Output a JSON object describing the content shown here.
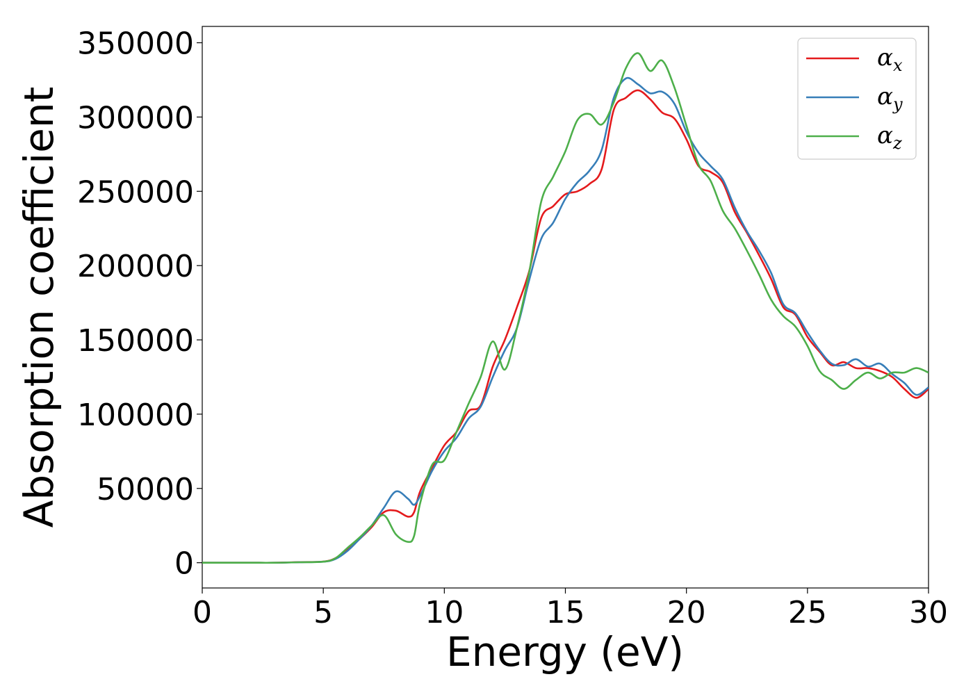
{
  "chart_data": {
    "type": "line",
    "xlabel": "Energy (eV)",
    "ylabel": "Absorption coefficient",
    "xlim": [
      0,
      30
    ],
    "ylim": [
      -17000,
      361000
    ],
    "xticks": [
      "0",
      "5",
      "10",
      "15",
      "20",
      "25",
      "30"
    ],
    "yticks": [
      "0",
      "50000",
      "100000",
      "150000",
      "200000",
      "250000",
      "300000",
      "350000"
    ],
    "grid": false,
    "legend_position": "top-right",
    "x": [
      0,
      1,
      2,
      3,
      4,
      5,
      5.5,
      6,
      6.5,
      7,
      7.5,
      8,
      8.5,
      8.75,
      9,
      9.5,
      10,
      10.5,
      11,
      11.5,
      12,
      12.5,
      13,
      13.5,
      14,
      14.5,
      15,
      15.5,
      16,
      16.5,
      17,
      17.5,
      18,
      18.5,
      19,
      19.5,
      20,
      20.5,
      21,
      21.5,
      22,
      22.5,
      23,
      23.5,
      24,
      24.5,
      25,
      25.5,
      26,
      26.5,
      27,
      27.5,
      28,
      28.5,
      29,
      29.5,
      30
    ],
    "series": [
      {
        "name": "α",
        "subscript": "x",
        "color": "#e41a1c",
        "values": [
          0,
          0,
          0,
          0,
          400,
          800,
          3000,
          9000,
          16000,
          24000,
          34000,
          35000,
          31000,
          34000,
          48000,
          64000,
          79000,
          88000,
          102000,
          106000,
          132000,
          150000,
          172000,
          196000,
          232000,
          240000,
          248000,
          250000,
          255000,
          265000,
          305000,
          313000,
          318000,
          312000,
          303000,
          299000,
          285000,
          267000,
          263000,
          256000,
          236000,
          222000,
          207000,
          191000,
          172000,
          167000,
          152000,
          142000,
          133000,
          135000,
          131000,
          131000,
          129000,
          125000,
          117000,
          111000,
          117000
        ]
      },
      {
        "name": "α",
        "subscript": "y",
        "color": "#377eb8",
        "values": [
          0,
          0,
          0,
          0,
          300,
          700,
          2500,
          8000,
          16000,
          25000,
          37000,
          48000,
          43000,
          39000,
          45000,
          62000,
          75000,
          84000,
          97000,
          105000,
          125000,
          143000,
          158000,
          190000,
          218000,
          229000,
          245000,
          256000,
          264000,
          278000,
          313000,
          326000,
          322000,
          316000,
          317000,
          309000,
          290000,
          276000,
          267000,
          258000,
          239000,
          223000,
          210000,
          195000,
          174000,
          168000,
          155000,
          143000,
          134000,
          133000,
          137000,
          132000,
          134000,
          127000,
          121000,
          113000,
          118000
        ]
      },
      {
        "name": "α",
        "subscript": "z",
        "color": "#4daf4a",
        "values": [
          0,
          0,
          0,
          0,
          300,
          700,
          3000,
          10000,
          17000,
          25000,
          32000,
          19000,
          14000,
          18000,
          40000,
          66000,
          69000,
          88000,
          107000,
          125000,
          149000,
          130000,
          158000,
          195000,
          243000,
          260000,
          277000,
          298000,
          302000,
          295000,
          310000,
          333000,
          343000,
          331000,
          338000,
          320000,
          294000,
          268000,
          257000,
          237000,
          225000,
          210000,
          194000,
          177000,
          166000,
          159000,
          146000,
          129000,
          123000,
          117000,
          123000,
          128000,
          124000,
          128000,
          128000,
          131000,
          128000
        ]
      }
    ]
  }
}
